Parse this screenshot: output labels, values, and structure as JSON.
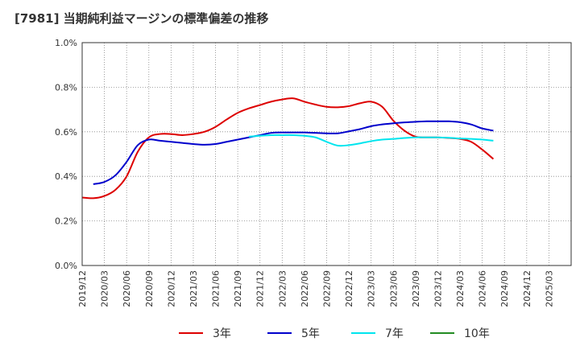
{
  "chart_data": {
    "type": "line",
    "title": "[7981]  当期純利益マージンの標準偏差の推移",
    "xlabel": "",
    "ylabel": "",
    "ylim": [
      0.0,
      1.0
    ],
    "y_ticks": [
      "0.0%",
      "0.2%",
      "0.4%",
      "0.6%",
      "0.8%",
      "1.0%"
    ],
    "x_ticks": [
      "2019/12",
      "2020/03",
      "2020/06",
      "2020/09",
      "2020/12",
      "2021/03",
      "2021/06",
      "2021/09",
      "2021/12",
      "2022/03",
      "2022/06",
      "2022/09",
      "2022/12",
      "2023/03",
      "2023/06",
      "2023/09",
      "2023/12",
      "2024/03",
      "2024/06",
      "2024/09",
      "2024/12",
      "2025/03"
    ],
    "grid": true,
    "legend_position": "bottom",
    "series": [
      {
        "name": "3年",
        "color": "#dd0000",
        "points": [
          [
            0,
            0.305
          ],
          [
            1,
            0.302
          ],
          [
            2,
            0.312
          ],
          [
            3,
            0.34
          ],
          [
            4,
            0.4
          ],
          [
            5,
            0.51
          ],
          [
            6,
            0.575
          ],
          [
            7,
            0.59
          ],
          [
            8,
            0.59
          ],
          [
            9,
            0.585
          ],
          [
            10,
            0.59
          ],
          [
            11,
            0.6
          ],
          [
            12,
            0.622
          ],
          [
            13,
            0.655
          ],
          [
            14,
            0.685
          ],
          [
            15,
            0.705
          ],
          [
            16,
            0.72
          ],
          [
            17,
            0.735
          ],
          [
            18,
            0.745
          ],
          [
            19,
            0.75
          ],
          [
            20,
            0.735
          ],
          [
            21,
            0.722
          ],
          [
            22,
            0.712
          ],
          [
            23,
            0.71
          ],
          [
            24,
            0.715
          ],
          [
            25,
            0.728
          ],
          [
            26,
            0.735
          ],
          [
            27,
            0.712
          ],
          [
            28,
            0.65
          ],
          [
            29,
            0.605
          ],
          [
            30,
            0.578
          ],
          [
            31,
            0.575
          ],
          [
            32,
            0.575
          ],
          [
            33,
            0.572
          ],
          [
            34,
            0.568
          ],
          [
            35,
            0.555
          ],
          [
            36,
            0.52
          ],
          [
            37,
            0.478
          ]
        ]
      },
      {
        "name": "5年",
        "color": "#0000cc",
        "points": [
          [
            1,
            0.365
          ],
          [
            2,
            0.375
          ],
          [
            3,
            0.405
          ],
          [
            4,
            0.465
          ],
          [
            5,
            0.54
          ],
          [
            6,
            0.565
          ],
          [
            7,
            0.56
          ],
          [
            8,
            0.555
          ],
          [
            9,
            0.55
          ],
          [
            10,
            0.545
          ],
          [
            11,
            0.542
          ],
          [
            12,
            0.545
          ],
          [
            13,
            0.555
          ],
          [
            14,
            0.565
          ],
          [
            15,
            0.575
          ],
          [
            16,
            0.585
          ],
          [
            17,
            0.595
          ],
          [
            18,
            0.597
          ],
          [
            19,
            0.597
          ],
          [
            20,
            0.597
          ],
          [
            21,
            0.595
          ],
          [
            22,
            0.593
          ],
          [
            23,
            0.593
          ],
          [
            24,
            0.602
          ],
          [
            25,
            0.612
          ],
          [
            26,
            0.625
          ],
          [
            27,
            0.633
          ],
          [
            28,
            0.638
          ],
          [
            29,
            0.642
          ],
          [
            30,
            0.645
          ],
          [
            31,
            0.647
          ],
          [
            32,
            0.647
          ],
          [
            33,
            0.647
          ],
          [
            34,
            0.643
          ],
          [
            35,
            0.633
          ],
          [
            36,
            0.615
          ],
          [
            37,
            0.605
          ]
        ]
      },
      {
        "name": "7年",
        "color": "#00e5ee",
        "points": [
          [
            15,
            0.578
          ],
          [
            16,
            0.582
          ],
          [
            17,
            0.585
          ],
          [
            18,
            0.585
          ],
          [
            19,
            0.585
          ],
          [
            20,
            0.582
          ],
          [
            21,
            0.575
          ],
          [
            22,
            0.555
          ],
          [
            23,
            0.538
          ],
          [
            24,
            0.54
          ],
          [
            25,
            0.548
          ],
          [
            26,
            0.558
          ],
          [
            27,
            0.565
          ],
          [
            28,
            0.568
          ],
          [
            29,
            0.572
          ],
          [
            30,
            0.575
          ],
          [
            31,
            0.575
          ],
          [
            32,
            0.575
          ],
          [
            33,
            0.573
          ],
          [
            34,
            0.57
          ],
          [
            35,
            0.568
          ],
          [
            36,
            0.565
          ],
          [
            37,
            0.56
          ]
        ]
      },
      {
        "name": "10年",
        "color": "#228b22",
        "points": []
      }
    ]
  }
}
